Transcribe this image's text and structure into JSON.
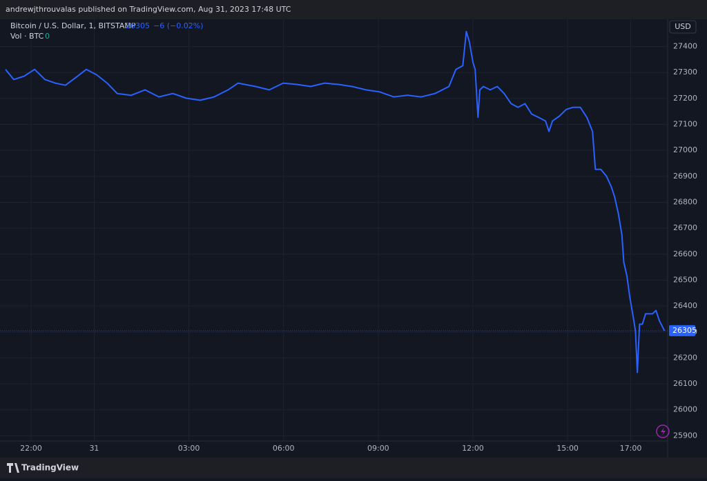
{
  "chart_data": {
    "type": "line",
    "header": "andrewjthrouvalas published on TradingView.com, Aug 31, 2023 17:48 UTC",
    "symbol": "Bitcoin / U.S. Dollar, 1, BITSTAMP",
    "change": "−6 (−0.02%)",
    "volume_label": "Vol · BTC",
    "volume_value": 0,
    "currency": "USD",
    "brand": "TradingView",
    "x": [
      21.19,
      21.45,
      21.78,
      22.11,
      22.44,
      22.77,
      23.09,
      23.42,
      23.75,
      24.08,
      24.41,
      24.73,
      25.17,
      25.61,
      26.05,
      26.49,
      26.92,
      27.36,
      27.8,
      28.24,
      28.56,
      29.11,
      29.55,
      29.99,
      30.42,
      30.86,
      31.3,
      31.74,
      32.17,
      32.61,
      33.05,
      33.49,
      33.93,
      34.36,
      34.8,
      35.24,
      35.46,
      35.68,
      35.79,
      35.89,
      36.0,
      36.07,
      36.16,
      36.22,
      36.33,
      36.55,
      36.77,
      36.99,
      37.21,
      37.43,
      37.65,
      37.86,
      38.08,
      38.3,
      38.41,
      38.52,
      38.74,
      38.96,
      39.18,
      39.4,
      39.61,
      39.79,
      39.88,
      40.05,
      40.23,
      40.38,
      40.49,
      40.61,
      40.72,
      40.78,
      40.88,
      40.97,
      41.08,
      41.15,
      41.21,
      41.28,
      41.37,
      41.47,
      41.69,
      41.8,
      41.91,
      42.07
    ],
    "series": [
      {
        "color": "#2962ff",
        "values": [
          27312,
          27273,
          27286,
          27312,
          27273,
          27259,
          27251,
          27281,
          27312,
          27291,
          27259,
          27219,
          27212,
          27233,
          27206,
          27219,
          27201,
          27193,
          27206,
          27233,
          27259,
          27246,
          27233,
          27259,
          27254,
          27246,
          27259,
          27254,
          27246,
          27233,
          27225,
          27206,
          27212,
          27206,
          27219,
          27246,
          27312,
          27326,
          27458,
          27418,
          27339,
          27312,
          27127,
          27233,
          27246,
          27233,
          27246,
          27219,
          27180,
          27166,
          27180,
          27140,
          27127,
          27113,
          27073,
          27113,
          27132,
          27158,
          27166,
          27166,
          27127,
          27073,
          26927,
          26927,
          26901,
          26861,
          26821,
          26755,
          26675,
          26569,
          26516,
          26436,
          26357,
          26304,
          26144,
          26330,
          26330,
          26370,
          26370,
          26383,
          26343,
          26305
        ]
      }
    ],
    "xlim": [
      21.19,
      42.17
    ],
    "ylim": [
      25840,
      27505
    ],
    "xticks": [
      {
        "value": 22,
        "label": "22:00"
      },
      {
        "value": 24,
        "label": "31"
      },
      {
        "value": 27,
        "label": "03:00"
      },
      {
        "value": 30,
        "label": "06:00"
      },
      {
        "value": 33,
        "label": "09:00"
      },
      {
        "value": 36,
        "label": "12:00"
      },
      {
        "value": 39,
        "label": "15:00"
      },
      {
        "value": 41,
        "label": "17:00"
      }
    ],
    "yticks": [
      25900,
      26000,
      26100,
      26200,
      26300,
      26400,
      26500,
      26600,
      26700,
      26800,
      26900,
      27000,
      27100,
      27200,
      27300,
      27400
    ],
    "grid": true
  }
}
